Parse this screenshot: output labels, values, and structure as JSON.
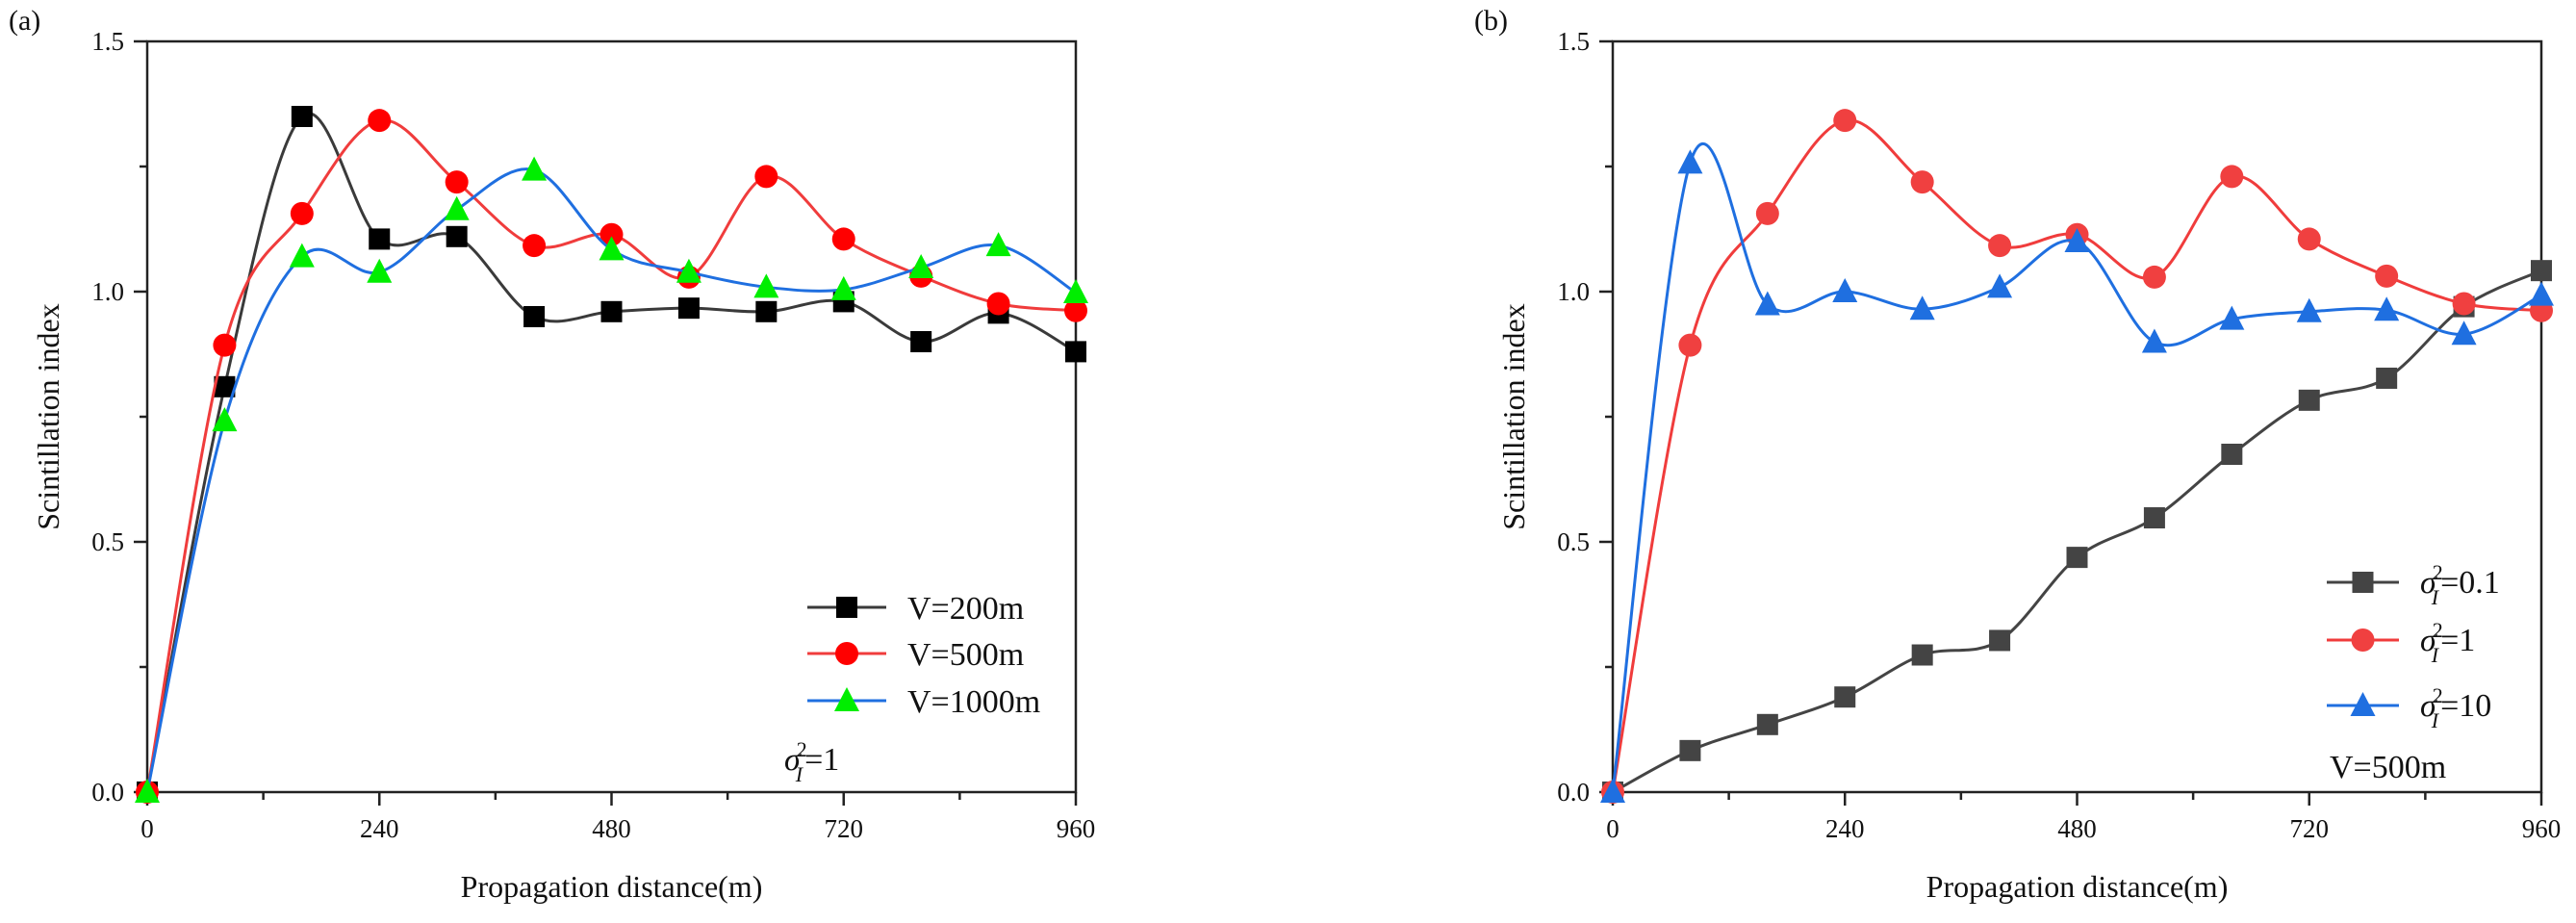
{
  "chart_data": [
    {
      "type": "line",
      "panel_label": "(a)",
      "xlabel": "Propagation distance(m)",
      "ylabel": "Scintillation index",
      "xlim": [
        0,
        960
      ],
      "ylim": [
        0,
        1.5
      ],
      "xticks": [
        "0",
        "240",
        "480",
        "720",
        "960"
      ],
      "yticks": [
        "0.0",
        "0.5",
        "1.0",
        "1.5"
      ],
      "grid": false,
      "legend_position": "bottom-right",
      "x": [
        0,
        80,
        160,
        240,
        320,
        400,
        480,
        560,
        640,
        720,
        800,
        880,
        960
      ],
      "series": [
        {
          "name": "V=200m",
          "marker": "square",
          "line_color": "#3a3a3a",
          "marker_color": "#000000",
          "values": [
            0,
            0.81,
            1.35,
            1.105,
            1.11,
            0.95,
            0.96,
            0.967,
            0.96,
            0.98,
            0.9,
            0.957,
            0.88
          ]
        },
        {
          "name": "V=500m",
          "marker": "circle",
          "line_color": "#f03c3c",
          "marker_color": "#ff0000",
          "values": [
            0,
            0.893,
            1.156,
            1.342,
            1.219,
            1.092,
            1.114,
            1.029,
            1.23,
            1.105,
            1.031,
            0.976,
            0.962
          ]
        },
        {
          "name": "V=1000m",
          "marker": "triangle",
          "line_color": "#1f6fe0",
          "marker_color": "#00ee00",
          "values": [
            0,
            0.742,
            1.07,
            1.039,
            1.164,
            1.243,
            1.084,
            1.039,
            1.009,
            1.004,
            1.048,
            1.092,
            0.998
          ]
        }
      ],
      "annotation": {
        "symbol": "σ",
        "sup": "2",
        "sub": "I",
        "value": "=1"
      }
    },
    {
      "type": "line",
      "panel_label": "(b)",
      "xlabel": "Propagation distance(m)",
      "ylabel": "Scintillation index",
      "xlim": [
        0,
        960
      ],
      "ylim": [
        0,
        1.5
      ],
      "xticks": [
        "0",
        "240",
        "480",
        "720",
        "960"
      ],
      "yticks": [
        "0.0",
        "0.5",
        "1.0",
        "1.5"
      ],
      "grid": false,
      "legend_position": "bottom-right",
      "x": [
        0,
        80,
        160,
        240,
        320,
        400,
        480,
        560,
        640,
        720,
        800,
        880,
        960
      ],
      "series": [
        {
          "name": "=0.1",
          "legend_symbol": {
            "symbol": "σ",
            "sup": "2",
            "sub": "I"
          },
          "marker": "square",
          "line_color": "#444444",
          "marker_color": "#444444",
          "values": [
            0,
            0.083,
            0.135,
            0.19,
            0.274,
            0.303,
            0.469,
            0.548,
            0.675,
            0.783,
            0.827,
            0.97,
            1.042
          ]
        },
        {
          "name": "=1",
          "legend_symbol": {
            "symbol": "σ",
            "sup": "2",
            "sub": "I"
          },
          "marker": "circle",
          "line_color": "#f03c3c",
          "marker_color": "#f04040",
          "values": [
            0,
            0.893,
            1.156,
            1.342,
            1.219,
            1.092,
            1.114,
            1.029,
            1.23,
            1.105,
            1.031,
            0.976,
            0.962
          ]
        },
        {
          "name": "=10",
          "legend_symbol": {
            "symbol": "σ",
            "sup": "2",
            "sub": "I"
          },
          "marker": "triangle",
          "line_color": "#1f6fe0",
          "marker_color": "#1f6fe0",
          "values": [
            0,
            1.257,
            0.974,
            1.0,
            0.965,
            1.009,
            1.1,
            0.899,
            0.945,
            0.96,
            0.963,
            0.915,
            0.993
          ]
        }
      ],
      "annotation_text": "V=500m"
    }
  ]
}
